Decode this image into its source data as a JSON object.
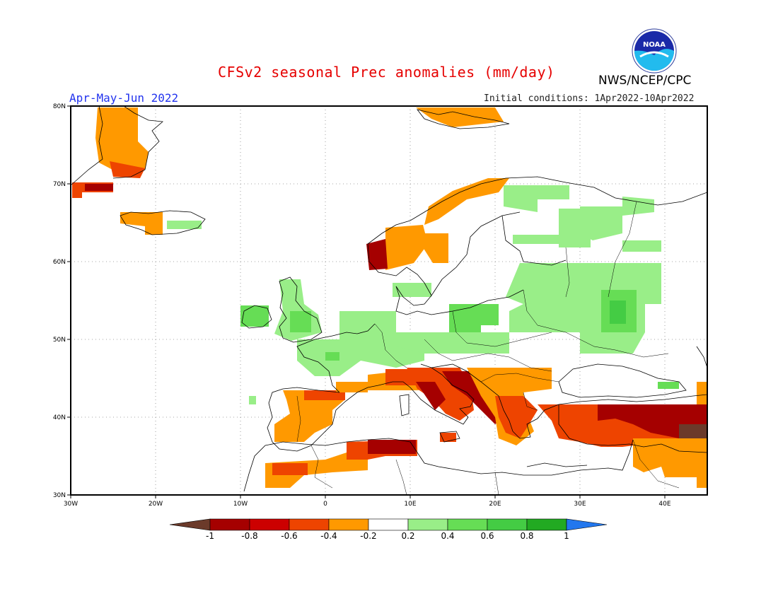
{
  "header": {
    "title": "CFSv2 seasonal Prec anomalies (mm/day)",
    "season": "Apr-May-Jun 2022",
    "initial_conditions": "Initial conditions: 1Apr2022-10Apr2022",
    "agency": "NWS/NCEP/CPC",
    "logo_text": "NOAA"
  },
  "map": {
    "projection": "equirectangular",
    "lon_range": [
      -30,
      45
    ],
    "lat_range": [
      30,
      80
    ],
    "grid": "dotted",
    "lat_labels": [
      "80N",
      "70N",
      "60N",
      "50N",
      "40N",
      "30N"
    ],
    "lon_labels": [
      "30W",
      "20W",
      "10W",
      "0",
      "10E",
      "20E",
      "30E",
      "40E"
    ],
    "anomaly_regions": [
      {
        "name": "Greenland east coast",
        "value": -0.4
      },
      {
        "name": "Southwest Norway coast",
        "value": -0.8
      },
      {
        "name": "Iberian Peninsula",
        "value": -0.4
      },
      {
        "name": "Italy and Adriatic",
        "value": -0.8
      },
      {
        "name": "Balkans and Greece",
        "value": -0.6
      },
      {
        "name": "Turkey",
        "value": -0.8
      },
      {
        "name": "North Africa",
        "value": -0.6
      },
      {
        "name": "British Isles",
        "value": 0.4
      },
      {
        "name": "France",
        "value": 0.4
      },
      {
        "name": "Central Europe",
        "value": 0.4
      },
      {
        "name": "Western Russia",
        "value": 0.6
      },
      {
        "name": "Northern Finland",
        "value": 0.4
      }
    ]
  },
  "colorbar": {
    "colors": [
      "#6b3a2a",
      "#a50000",
      "#cc0000",
      "#ee4400",
      "#ff9900",
      "#ffffff",
      "#99ee88",
      "#66dd55",
      "#44cc44",
      "#22aa22",
      "#2277ee"
    ],
    "labels": [
      "-1",
      "-0.8",
      "-0.6",
      "-0.4",
      "-0.2",
      "0.2",
      "0.4",
      "0.6",
      "0.8",
      "1"
    ]
  }
}
